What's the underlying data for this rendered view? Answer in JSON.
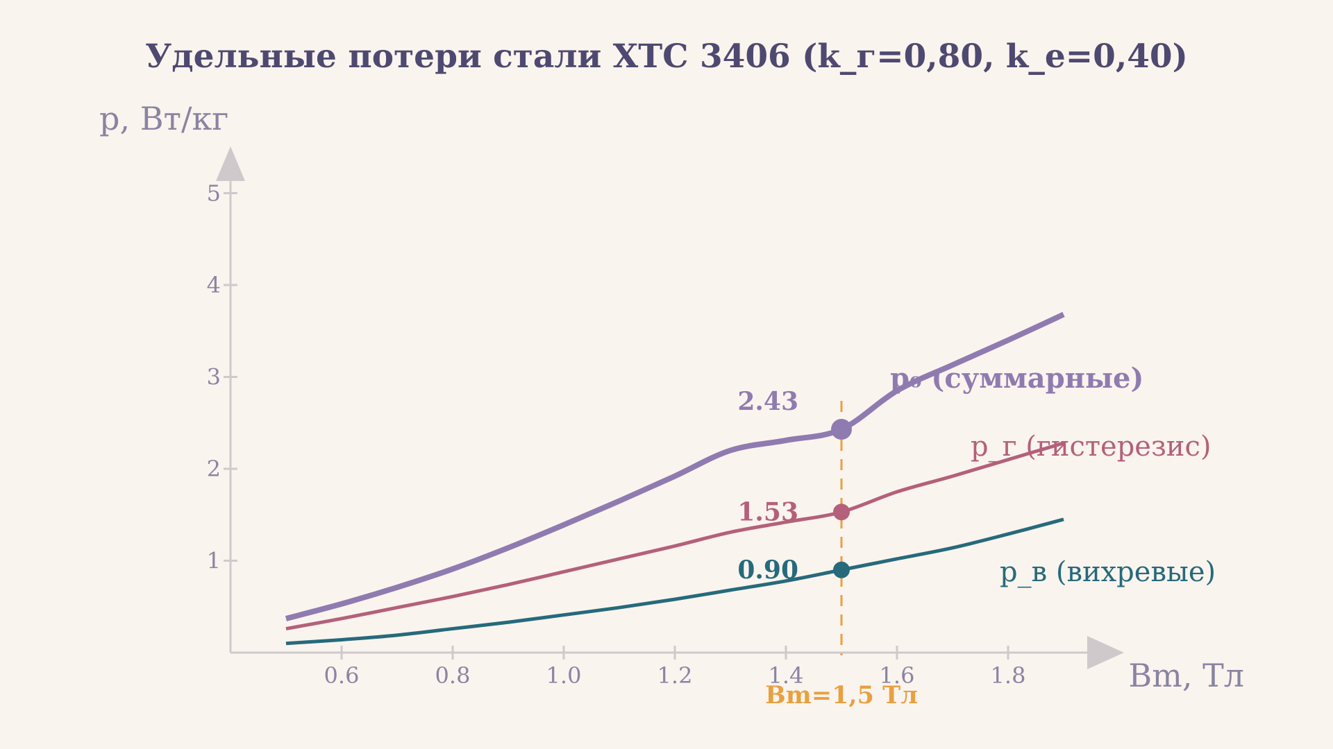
{
  "chart_data": {
    "type": "line",
    "title": "Удельные потери стали ХТС 3406 (k_г=0,80, k_е=0,40)",
    "xlabel": "Bm, Тл",
    "ylabel": "p, Вт/кг",
    "xlim": [
      0.4,
      2.0
    ],
    "ylim": [
      0,
      5.5
    ],
    "x_ticks": [
      0.6,
      0.8,
      1.0,
      1.2,
      1.4,
      1.6,
      1.8
    ],
    "x_tick_labels": [
      "0.6",
      "0.8",
      "1.0",
      "1.2",
      "1.4",
      "1.6",
      "1.8"
    ],
    "y_ticks": [
      1,
      2,
      3,
      4,
      5
    ],
    "y_tick_labels": [
      "1",
      "2",
      "3",
      "4",
      "5"
    ],
    "x": [
      0.5,
      0.6,
      0.7,
      0.8,
      0.9,
      1.0,
      1.1,
      1.2,
      1.3,
      1.4,
      1.5,
      1.6,
      1.7,
      1.8,
      1.9
    ],
    "series": [
      {
        "name": "p₀ (суммарные)",
        "color": "#8f7bb0",
        "values": [
          0.37,
          0.53,
          0.71,
          0.91,
          1.14,
          1.39,
          1.65,
          1.92,
          2.2,
          2.31,
          2.43,
          2.85,
          3.13,
          3.4,
          3.68
        ]
      },
      {
        "name": "p_г (гистерезис)",
        "color": "#b4607a",
        "values": [
          0.26,
          0.37,
          0.49,
          0.61,
          0.74,
          0.88,
          1.02,
          1.16,
          1.31,
          1.42,
          1.53,
          1.75,
          1.92,
          2.1,
          2.28
        ]
      },
      {
        "name": "p_в (вихревые)",
        "color": "#266a7c",
        "values": [
          0.1,
          0.14,
          0.19,
          0.26,
          0.33,
          0.41,
          0.49,
          0.58,
          0.68,
          0.78,
          0.9,
          1.02,
          1.14,
          1.29,
          1.45
        ]
      }
    ],
    "marker": {
      "x": 1.5,
      "label": "Bm=1,5 Тл",
      "color": "#e8a040",
      "points": [
        {
          "series": 0,
          "value": 2.43,
          "label": "2.43"
        },
        {
          "series": 1,
          "value": 1.53,
          "label": "1.53"
        },
        {
          "series": 2,
          "value": 0.9,
          "label": "0.90"
        }
      ]
    },
    "grid": false,
    "legend": "inline, right of curves"
  }
}
